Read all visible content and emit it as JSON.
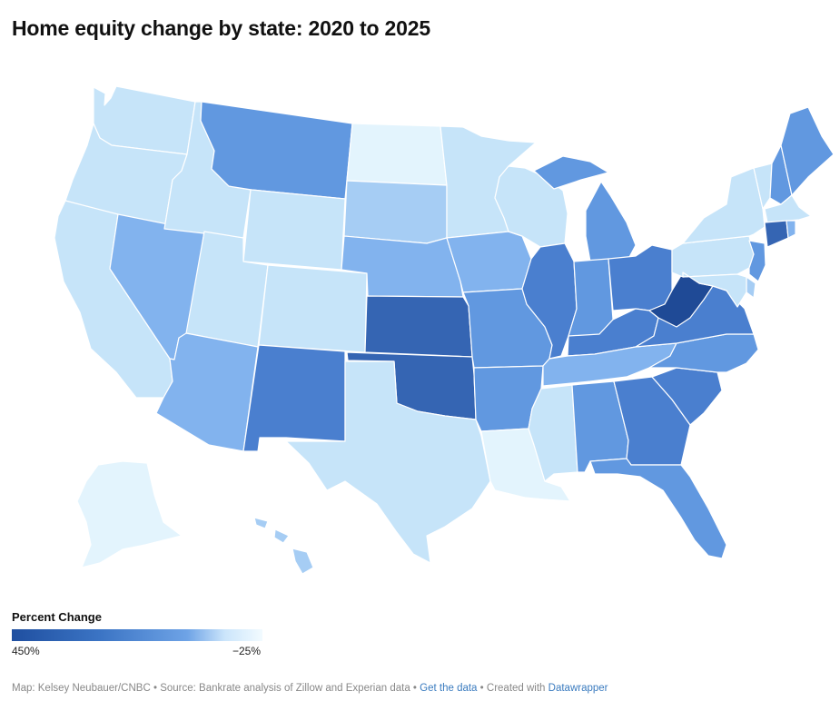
{
  "title": "Home equity change by state: 2020 to 2025",
  "legend": {
    "title": "Percent Change",
    "max_label": "450%",
    "min_label": "−25%"
  },
  "footer": {
    "credit": "Map: Kelsey Neubauer/CNBC",
    "source": "Source: Bankrate analysis of Zillow and Experian data",
    "link_label": "Get the data",
    "created": "Created with",
    "tool": "Datawrapper",
    "sep": "•"
  },
  "colors": {
    "c1": "#1f4a96",
    "c2": "#3565b3",
    "c3": "#4a7fcf",
    "c4": "#6198e0",
    "c5": "#82b3ee",
    "c6": "#a6cdf4",
    "c7": "#c6e4f9",
    "c8": "#e3f4fd",
    "border": "#ffffff"
  },
  "states": [
    {
      "code": "WA",
      "name": "Washington",
      "fill": "c7"
    },
    {
      "code": "OR",
      "name": "Oregon",
      "fill": "c7"
    },
    {
      "code": "CA",
      "name": "California",
      "fill": "c7"
    },
    {
      "code": "NV",
      "name": "Nevada",
      "fill": "c5"
    },
    {
      "code": "ID",
      "name": "Idaho",
      "fill": "c7"
    },
    {
      "code": "MT",
      "name": "Montana",
      "fill": "c4"
    },
    {
      "code": "WY",
      "name": "Wyoming",
      "fill": "c7"
    },
    {
      "code": "UT",
      "name": "Utah",
      "fill": "c7"
    },
    {
      "code": "AZ",
      "name": "Arizona",
      "fill": "c5"
    },
    {
      "code": "CO",
      "name": "Colorado",
      "fill": "c7"
    },
    {
      "code": "NM",
      "name": "New Mexico",
      "fill": "c3"
    },
    {
      "code": "ND",
      "name": "North Dakota",
      "fill": "c8"
    },
    {
      "code": "SD",
      "name": "South Dakota",
      "fill": "c6"
    },
    {
      "code": "NE",
      "name": "Nebraska",
      "fill": "c5"
    },
    {
      "code": "KS",
      "name": "Kansas",
      "fill": "c2"
    },
    {
      "code": "OK",
      "name": "Oklahoma",
      "fill": "c2"
    },
    {
      "code": "TX",
      "name": "Texas",
      "fill": "c7"
    },
    {
      "code": "MN",
      "name": "Minnesota",
      "fill": "c7"
    },
    {
      "code": "IA",
      "name": "Iowa",
      "fill": "c5"
    },
    {
      "code": "MO",
      "name": "Missouri",
      "fill": "c4"
    },
    {
      "code": "AR",
      "name": "Arkansas",
      "fill": "c4"
    },
    {
      "code": "LA",
      "name": "Louisiana",
      "fill": "c8"
    },
    {
      "code": "WI",
      "name": "Wisconsin",
      "fill": "c7"
    },
    {
      "code": "IL",
      "name": "Illinois",
      "fill": "c3"
    },
    {
      "code": "MI",
      "name": "Michigan",
      "fill": "c4"
    },
    {
      "code": "IN",
      "name": "Indiana",
      "fill": "c4"
    },
    {
      "code": "OH",
      "name": "Ohio",
      "fill": "c3"
    },
    {
      "code": "KY",
      "name": "Kentucky",
      "fill": "c3"
    },
    {
      "code": "TN",
      "name": "Tennessee",
      "fill": "c5"
    },
    {
      "code": "MS",
      "name": "Mississippi",
      "fill": "c7"
    },
    {
      "code": "AL",
      "name": "Alabama",
      "fill": "c4"
    },
    {
      "code": "GA",
      "name": "Georgia",
      "fill": "c3"
    },
    {
      "code": "FL",
      "name": "Florida",
      "fill": "c4"
    },
    {
      "code": "SC",
      "name": "South Carolina",
      "fill": "c3"
    },
    {
      "code": "NC",
      "name": "North Carolina",
      "fill": "c4"
    },
    {
      "code": "VA",
      "name": "Virginia",
      "fill": "c3"
    },
    {
      "code": "WV",
      "name": "West Virginia",
      "fill": "c1"
    },
    {
      "code": "PA",
      "name": "Pennsylvania",
      "fill": "c7"
    },
    {
      "code": "NY",
      "name": "New York",
      "fill": "c7"
    },
    {
      "code": "VT",
      "name": "Vermont",
      "fill": "c7"
    },
    {
      "code": "NH",
      "name": "New Hampshire",
      "fill": "c4"
    },
    {
      "code": "ME",
      "name": "Maine",
      "fill": "c4"
    },
    {
      "code": "MA",
      "name": "Massachusetts",
      "fill": "c7"
    },
    {
      "code": "CT",
      "name": "Connecticut",
      "fill": "c2"
    },
    {
      "code": "RI",
      "name": "Rhode Island",
      "fill": "c5"
    },
    {
      "code": "NJ",
      "name": "New Jersey",
      "fill": "c4"
    },
    {
      "code": "DE",
      "name": "Delaware",
      "fill": "c6"
    },
    {
      "code": "MD",
      "name": "Maryland",
      "fill": "c7"
    },
    {
      "code": "AK",
      "name": "Alaska",
      "fill": "c8"
    },
    {
      "code": "HI",
      "name": "Hawaii",
      "fill": "c6"
    }
  ]
}
